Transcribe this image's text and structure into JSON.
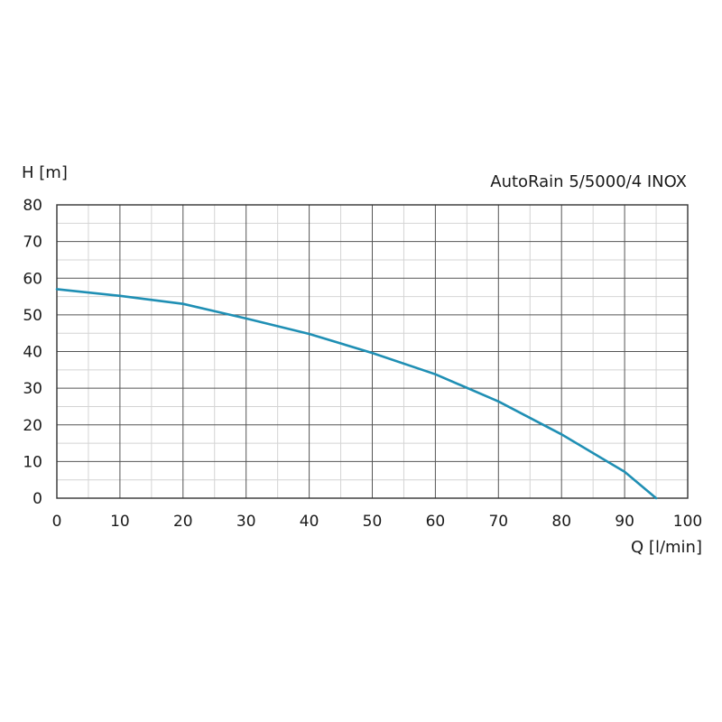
{
  "chart_data": {
    "type": "line",
    "title": "AutoRain 5/5000/4 INOX",
    "xlabel": "Q [l/min]",
    "ylabel": "H [m]",
    "xlim": [
      0,
      100
    ],
    "ylim": [
      0,
      80
    ],
    "xticks": [
      "0",
      "10",
      "20",
      "30",
      "40",
      "50",
      "60",
      "70",
      "80",
      "90",
      "100"
    ],
    "yticks": [
      "0",
      "10",
      "20",
      "30",
      "40",
      "50",
      "60",
      "70",
      "80"
    ],
    "grid": true,
    "minor_grid": true,
    "series": [
      {
        "color": "#1f8fb4",
        "x": [
          0,
          10,
          20,
          30,
          40,
          50,
          60,
          70,
          80,
          90,
          95
        ],
        "y": [
          57,
          55.2,
          53,
          49,
          44.8,
          39.6,
          33.8,
          26.4,
          17.4,
          7.2,
          0
        ]
      }
    ]
  }
}
